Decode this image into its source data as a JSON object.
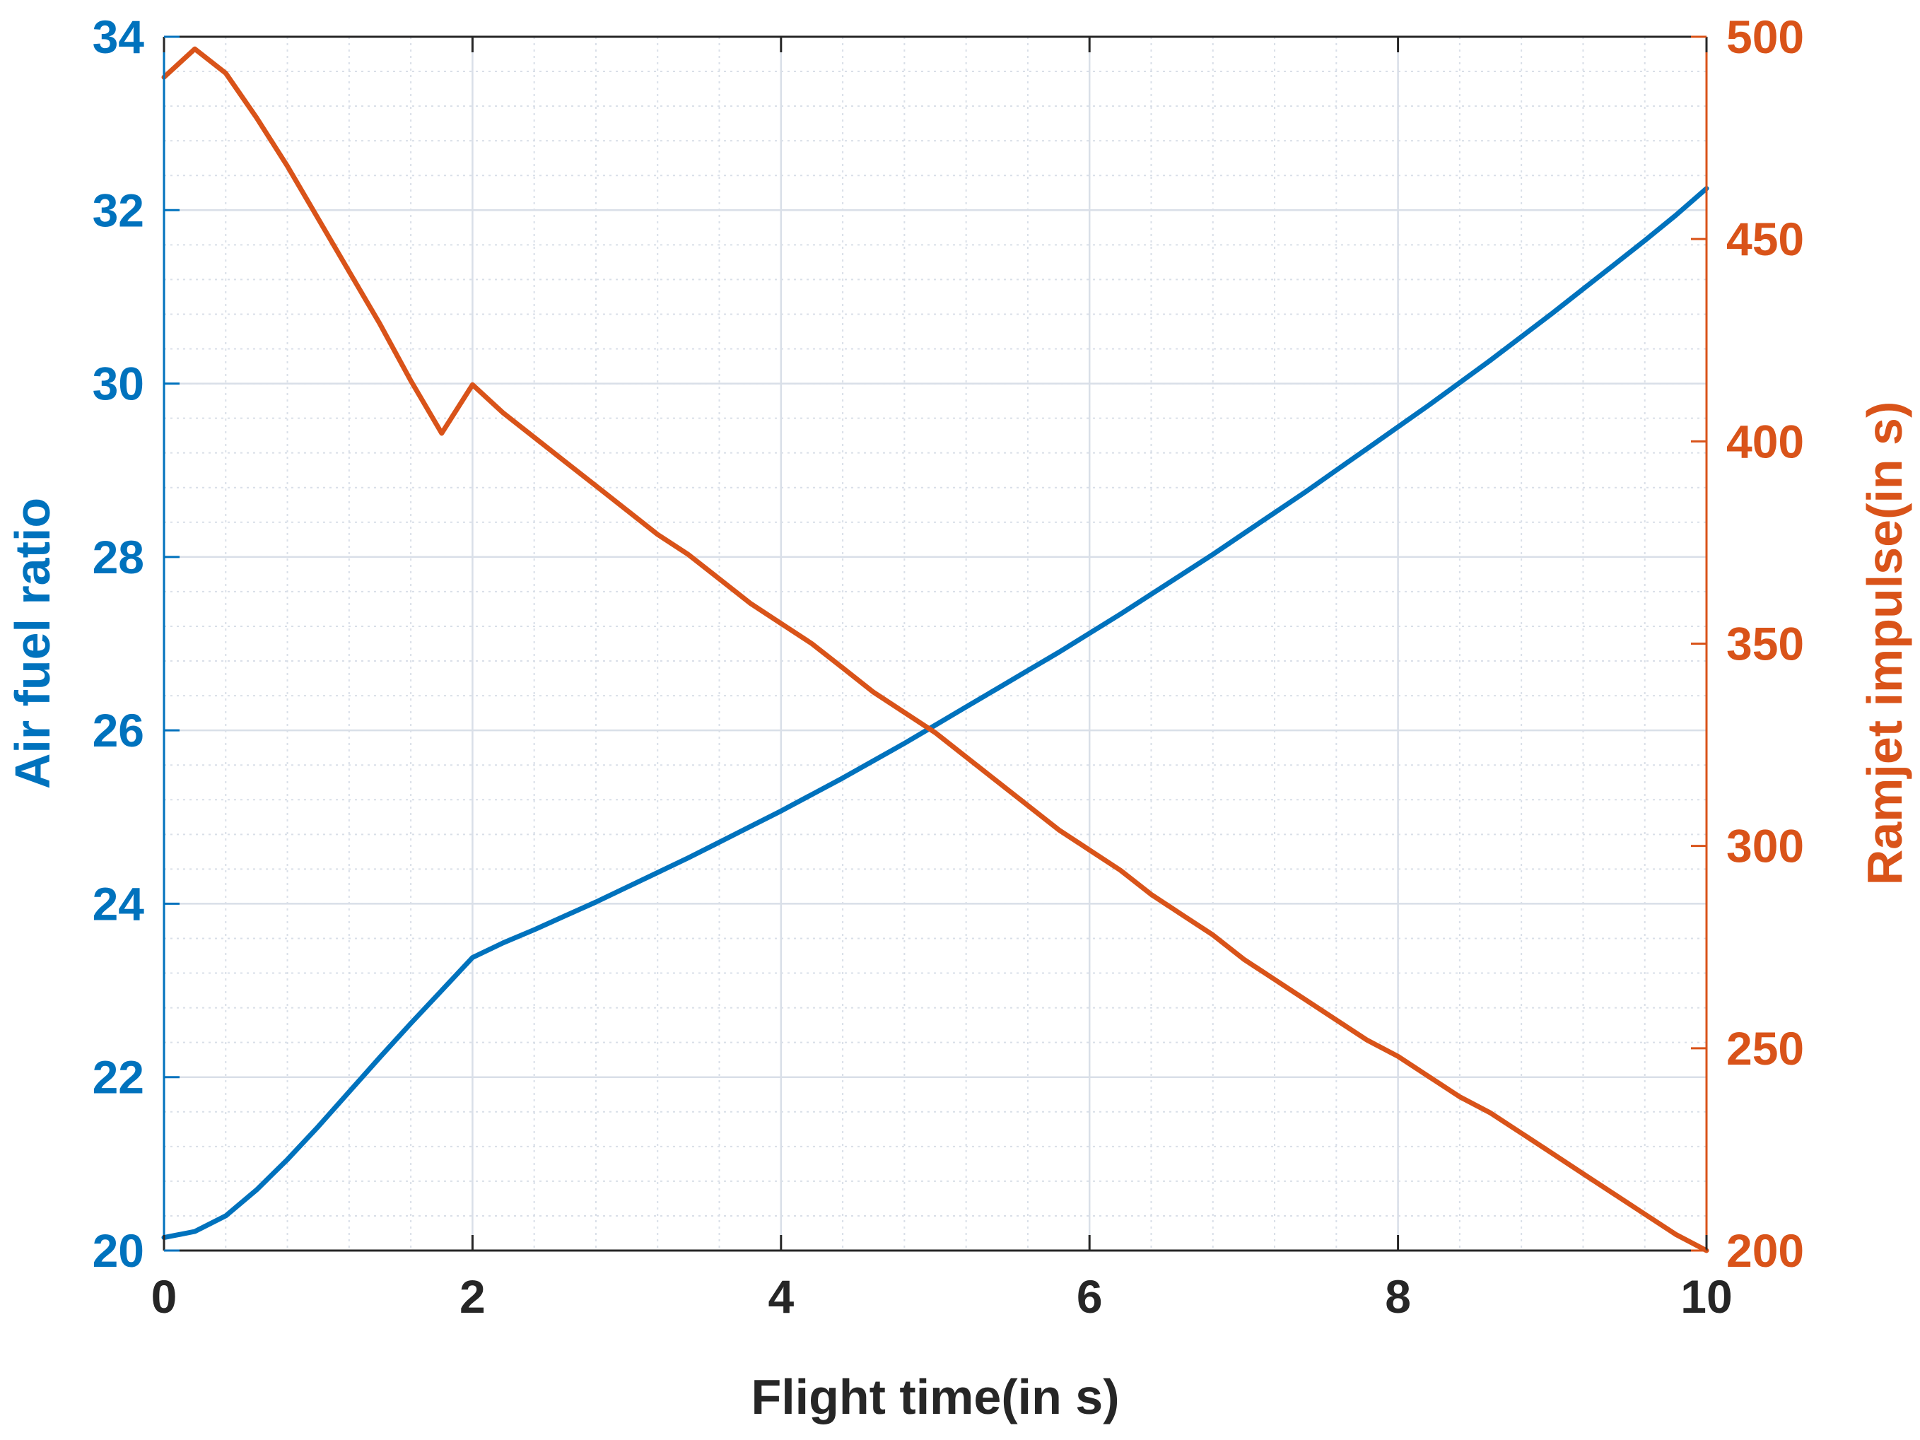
{
  "chart_data": {
    "type": "line",
    "xlabel": "Flight time(in s)",
    "ylabel_left": "Air fuel ratio",
    "ylabel_right": "Ramjet impulse(in s)",
    "xlim": [
      0,
      10
    ],
    "ylim_left": [
      20,
      34
    ],
    "ylim_right": [
      200,
      500
    ],
    "xticks": [
      0,
      2,
      4,
      6,
      8,
      10
    ],
    "yticks_left": [
      20,
      22,
      24,
      26,
      28,
      30,
      32,
      34
    ],
    "yticks_right": [
      200,
      250,
      300,
      350,
      400,
      450,
      500
    ],
    "grid": true,
    "minor_grid": true,
    "colors": {
      "left": "#0072BD",
      "right": "#D95319",
      "grid": "#d9dfe8",
      "axis": "#262626"
    },
    "series": [
      {
        "axis": "left",
        "x": [
          0,
          0.2,
          0.4,
          0.6,
          0.8,
          1.0,
          1.2,
          1.4,
          1.6,
          1.8,
          2.0,
          2.2,
          2.4,
          2.6,
          2.8,
          3.0,
          3.2,
          3.4,
          3.6,
          3.8,
          4.0,
          4.2,
          4.4,
          4.6,
          4.8,
          5.0,
          5.2,
          5.4,
          5.6,
          5.8,
          6.0,
          6.2,
          6.4,
          6.6,
          6.8,
          7.0,
          7.2,
          7.4,
          7.6,
          7.8,
          8.0,
          8.2,
          8.4,
          8.6,
          8.8,
          9.0,
          9.2,
          9.4,
          9.6,
          9.8,
          10.0
        ],
        "y": [
          20.15,
          20.22,
          20.4,
          20.7,
          21.05,
          21.43,
          21.83,
          22.23,
          22.62,
          23.0,
          23.38,
          23.55,
          23.7,
          23.86,
          24.02,
          24.19,
          24.36,
          24.53,
          24.71,
          24.89,
          25.07,
          25.26,
          25.45,
          25.65,
          25.85,
          26.06,
          26.27,
          26.48,
          26.69,
          26.9,
          27.12,
          27.34,
          27.57,
          27.8,
          28.03,
          28.27,
          28.51,
          28.75,
          29.0,
          29.25,
          29.5,
          29.75,
          30.01,
          30.27,
          30.54,
          30.81,
          31.09,
          31.37,
          31.65,
          31.94,
          32.25
        ]
      },
      {
        "axis": "right",
        "x": [
          0,
          0.2,
          0.4,
          0.6,
          0.8,
          1.0,
          1.2,
          1.4,
          1.6,
          1.8,
          2.0,
          2.2,
          2.4,
          2.6,
          2.8,
          3.0,
          3.2,
          3.4,
          3.6,
          3.8,
          4.0,
          4.2,
          4.4,
          4.6,
          4.8,
          5.0,
          5.2,
          5.4,
          5.6,
          5.8,
          6.0,
          6.2,
          6.4,
          6.6,
          6.8,
          7.0,
          7.2,
          7.4,
          7.6,
          7.8,
          8.0,
          8.2,
          8.4,
          8.6,
          8.8,
          9.0,
          9.2,
          9.4,
          9.6,
          9.8,
          10.0
        ],
        "y": [
          490,
          497,
          491,
          480,
          468,
          455,
          442,
          429,
          415,
          402,
          414,
          407,
          401,
          395,
          389,
          383,
          377,
          372,
          366,
          360,
          355,
          350,
          344,
          338,
          333,
          328,
          322,
          316,
          310,
          304,
          299,
          294,
          288,
          283,
          278,
          272,
          267,
          262,
          257,
          252,
          248,
          243,
          238,
          234,
          229,
          224,
          219,
          214,
          209,
          204,
          200
        ]
      }
    ]
  }
}
